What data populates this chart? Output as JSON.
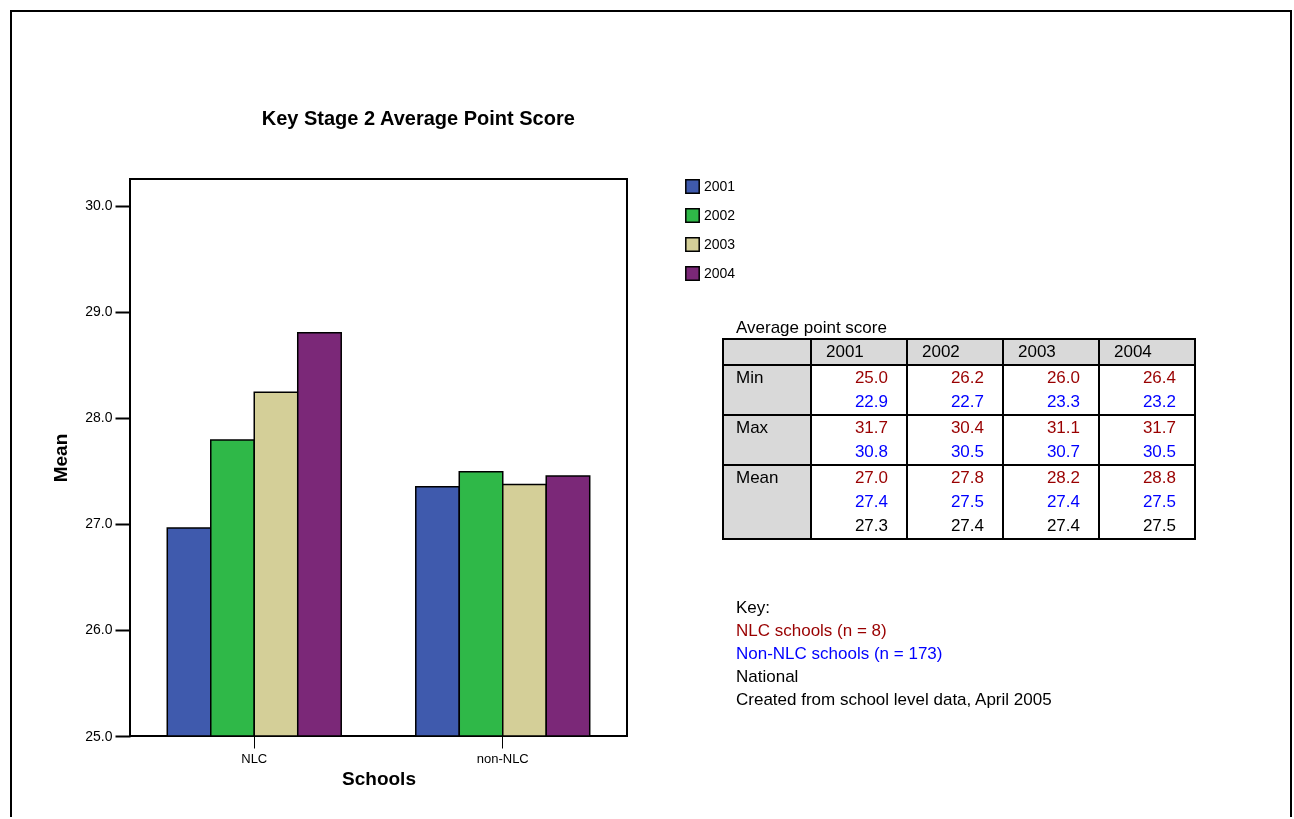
{
  "chart_data": [
    {
      "type": "bar",
      "title": "Key Stage 2 Average Point Score",
      "xlabel": "Schools",
      "ylabel": "Mean",
      "categories": [
        "NLC",
        "non-NLC"
      ],
      "series": [
        {
          "name": "2001",
          "color": "#3f5aad",
          "values": [
            26.96,
            27.35
          ]
        },
        {
          "name": "2002",
          "color": "#2fb848",
          "values": [
            27.79,
            27.49
          ]
        },
        {
          "name": "2003",
          "color": "#d4cf98",
          "values": [
            28.24,
            27.37
          ]
        },
        {
          "name": "2004",
          "color": "#7b2878",
          "values": [
            28.8,
            27.45
          ]
        }
      ],
      "ylim": [
        25,
        30.25
      ],
      "yticks": [
        {
          "value": 25,
          "label": "25.0"
        },
        {
          "value": 26,
          "label": "26.0"
        },
        {
          "value": 27,
          "label": "27.0"
        },
        {
          "value": 28,
          "label": "28.0"
        },
        {
          "value": 29,
          "label": "29.0"
        },
        {
          "value": 30,
          "label": "30.0"
        }
      ],
      "legend": "right"
    },
    {
      "type": "heatmap",
      "title": "Average point score",
      "categories": [
        "2001",
        "2002",
        "2003",
        "2004"
      ],
      "y_categories": [
        "Min",
        null,
        "Max",
        null,
        "Mean",
        null,
        null
      ],
      "cells": [
        [
          25.0,
          26.2,
          26.0,
          26.4
        ],
        [
          22.9,
          22.7,
          23.3,
          23.2
        ],
        [
          31.7,
          30.4,
          31.1,
          31.7
        ],
        [
          30.8,
          30.5,
          30.7,
          30.5
        ],
        [
          27.0,
          27.8,
          28.2,
          28.8
        ],
        [
          27.4,
          27.5,
          27.4,
          27.5
        ],
        [
          27.3,
          27.4,
          27.4,
          27.5
        ]
      ],
      "colors": [
        "#990000",
        "#0000ff",
        "#990000",
        "#0000ff",
        "#990000",
        "#0000ff",
        "#000000"
      ],
      "cell_labels": [
        [
          "25.0",
          "26.2",
          "26.0",
          "26.4"
        ],
        [
          "22.9",
          "22.7",
          "23.3",
          "23.2"
        ],
        [
          "31.7",
          "30.4",
          "31.1",
          "31.7"
        ],
        [
          "30.8",
          "30.5",
          "30.7",
          "30.5"
        ],
        [
          "27.0",
          "27.8",
          "28.2",
          "28.8"
        ],
        [
          "27.4",
          "27.5",
          "27.4",
          "27.5"
        ],
        [
          "27.3",
          "27.4",
          "27.4",
          "27.5"
        ]
      ],
      "data_labels": true,
      "legend_title": "Key:",
      "annotations": [
        "NLC schools (n = 8)",
        "Non-NLC schools (n = 173)",
        "National",
        "Created from school level data, April 2005"
      ]
    }
  ]
}
